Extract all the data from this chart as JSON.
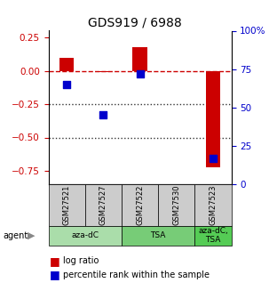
{
  "title": "GDS919 / 6988",
  "samples": [
    "GSM27521",
    "GSM27527",
    "GSM27522",
    "GSM27530",
    "GSM27523"
  ],
  "log_ratios": [
    0.1,
    -0.01,
    0.18,
    0.0,
    -0.72
  ],
  "percentile_ranks": [
    65,
    45,
    72,
    0,
    17
  ],
  "show_dot": [
    true,
    true,
    true,
    false,
    true
  ],
  "ylim_left": [
    -0.85,
    0.3
  ],
  "ylim_right": [
    0,
    100
  ],
  "yticks_left": [
    0.25,
    0.0,
    -0.25,
    -0.5,
    -0.75
  ],
  "yticks_right": [
    100,
    75,
    50,
    25,
    0
  ],
  "bar_color": "#cc0000",
  "dot_color": "#0000cc",
  "legend_bar_label": "log ratio",
  "legend_dot_label": "percentile rank within the sample",
  "sample_box_color": "#cccccc",
  "hline_zero_color": "#cc0000",
  "hline_dotted_color": "#333333",
  "bar_width": 0.4,
  "group_boundaries": [
    [
      0,
      2,
      "aza-dC",
      "#aaddaa"
    ],
    [
      2,
      4,
      "TSA",
      "#77cc77"
    ],
    [
      4,
      5,
      "aza-dC,\nTSA",
      "#55cc55"
    ]
  ]
}
